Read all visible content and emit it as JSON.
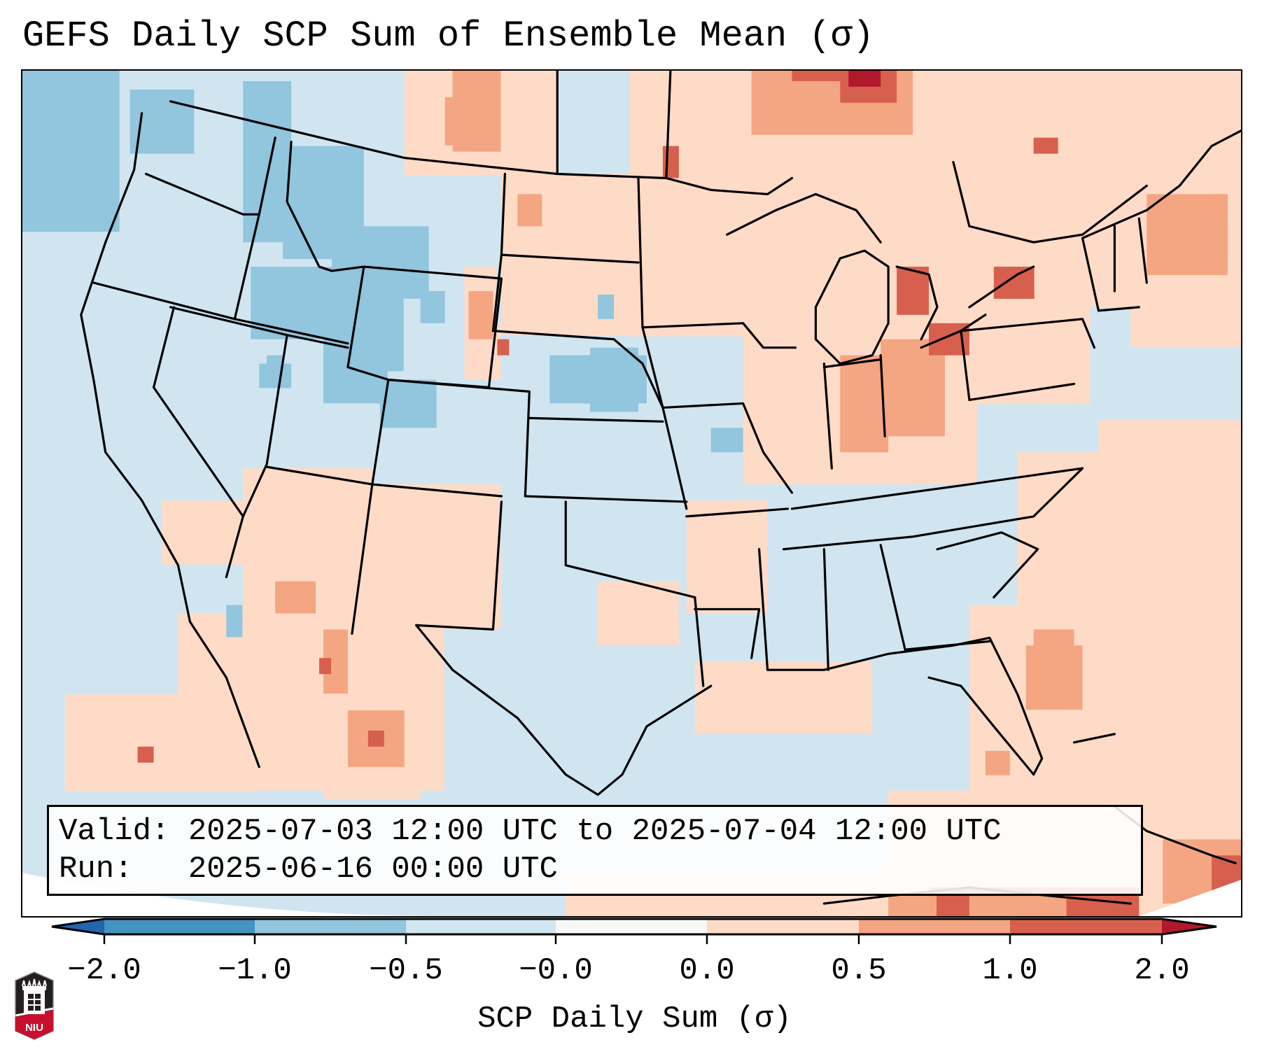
{
  "title": "GEFS Daily SCP Sum of Ensemble Mean (σ)",
  "info": {
    "valid_line": "Valid: 2025-07-03 12:00 UTC to 2025-07-04 12:00 UTC",
    "run_line": "Run:   2025-06-16 00:00 UTC"
  },
  "colorbar": {
    "label": "SCP Daily Sum (σ)",
    "ticks": [
      "−2.0",
      "−1.0",
      "−0.5",
      "−0.0",
      "0.0",
      "0.5",
      "1.0",
      "2.0"
    ],
    "bins": [
      {
        "from": "-inf",
        "to": -2.0,
        "color": "#2166ac"
      },
      {
        "from": -2.0,
        "to": -1.0,
        "color": "#4393c3"
      },
      {
        "from": -1.0,
        "to": -0.5,
        "color": "#92c5de"
      },
      {
        "from": -0.5,
        "to": -0.0,
        "color": "#d1e5f0"
      },
      {
        "from": -0.0,
        "to": 0.0,
        "color": "#f7f7f7"
      },
      {
        "from": 0.0,
        "to": 0.5,
        "color": "#fddbc7"
      },
      {
        "from": 0.5,
        "to": 1.0,
        "color": "#f4a582"
      },
      {
        "from": 1.0,
        "to": 2.0,
        "color": "#d6604d"
      },
      {
        "from": 2.0,
        "to": "inf",
        "color": "#b2182b"
      }
    ]
  },
  "logo": {
    "text": "NIU",
    "name": "Northern Illinois University"
  },
  "map": {
    "region": "Contiguous United States",
    "field": "SCP daily sum standardized anomaly",
    "highlights": [
      {
        "area": "Pacific Northwest / Idaho / Wyoming",
        "category": "-1.0 to -0.5"
      },
      {
        "area": "Nebraska / Kansas border",
        "category": "-1.0 to -0.5"
      },
      {
        "area": "Northern Plains / Upper Midwest",
        "category": "0.0 to 0.5"
      },
      {
        "area": "Great Lakes / Ohio Valley",
        "category": "0.5 to 1.0"
      },
      {
        "area": "Lake Ontario / Lake Erie",
        "category": "1.0 to 2.0"
      },
      {
        "area": "Northern Minnesota / Ontario border",
        "category": "1.0 to 2.0"
      },
      {
        "area": "Desert Southwest / Northern Mexico",
        "category": "0.0 to 1.0"
      },
      {
        "area": "Western Atlantic off Southeast coast",
        "category": "0.5 to 1.0"
      },
      {
        "area": "Caribbean / Cuba",
        "category": "1.0 to 2.0"
      }
    ]
  }
}
